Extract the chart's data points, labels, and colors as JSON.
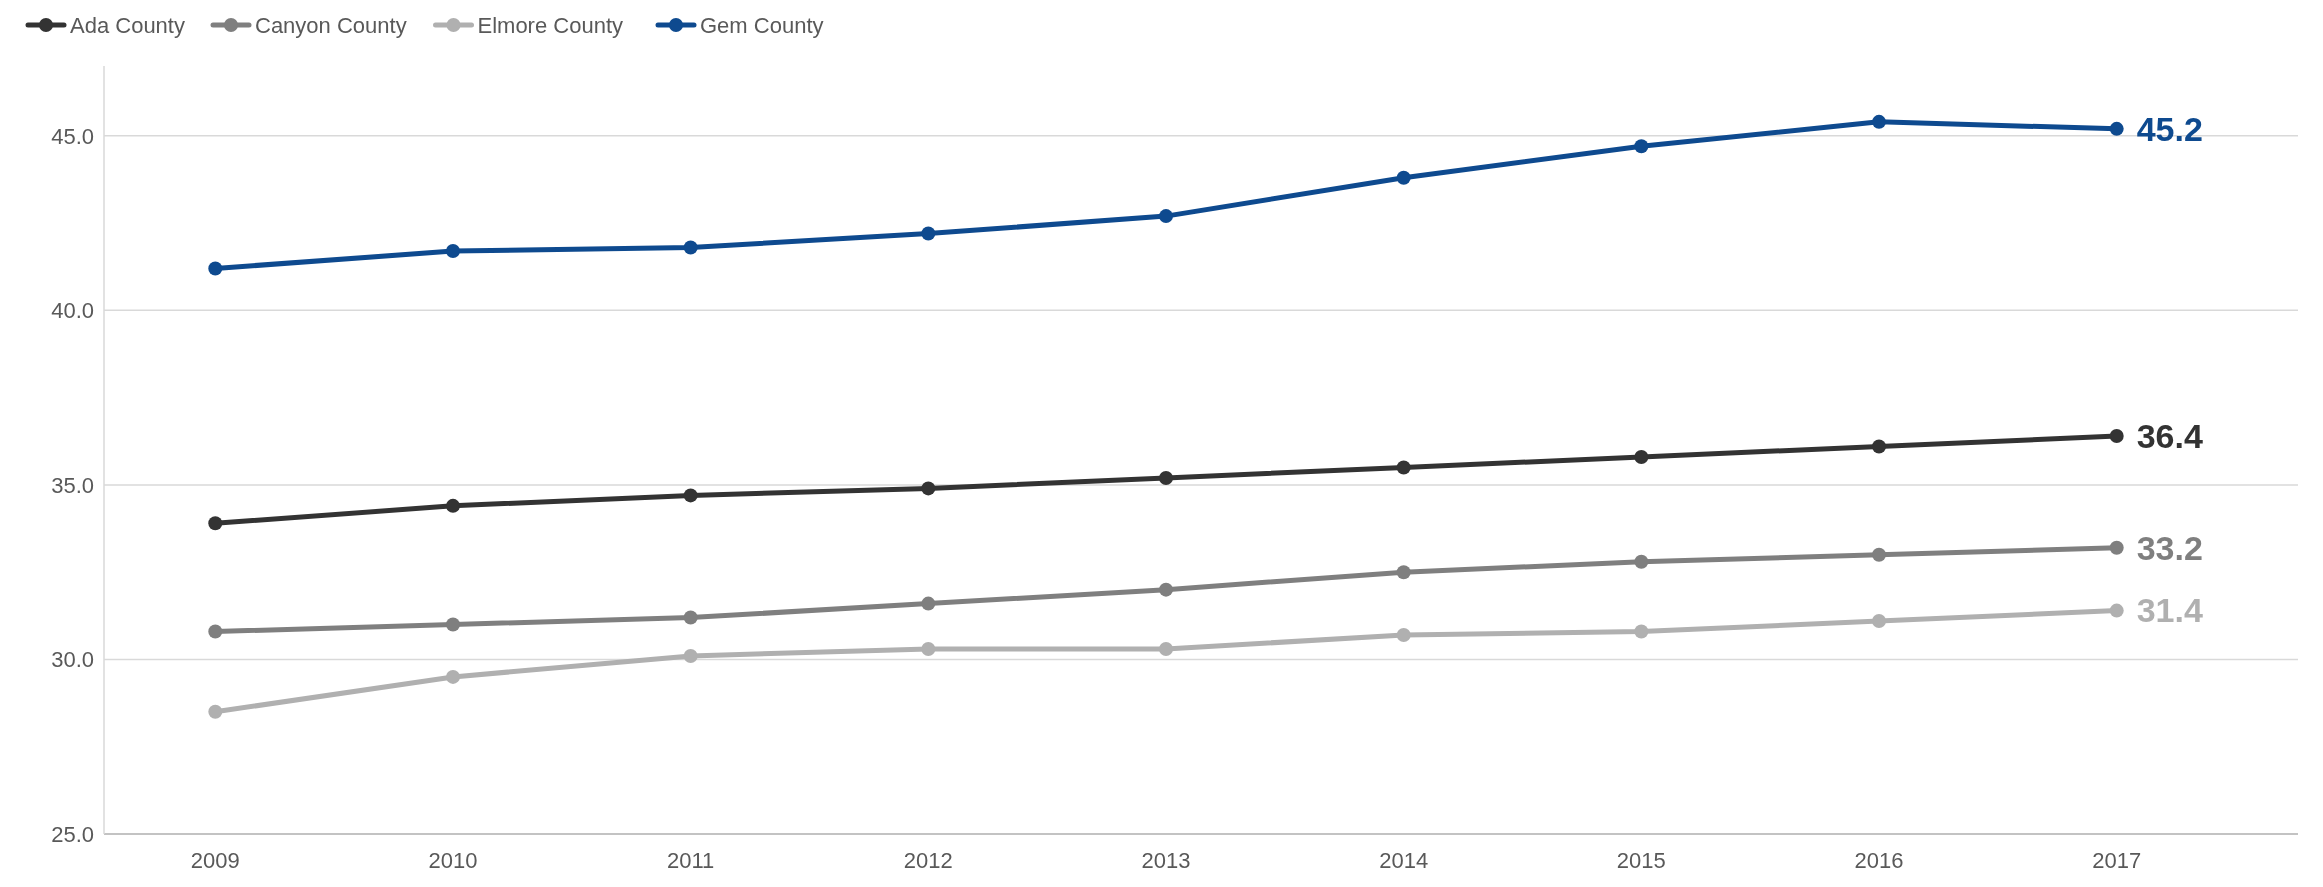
{
  "chart_data": {
    "type": "line",
    "categories": [
      "2009",
      "2010",
      "2011",
      "2012",
      "2013",
      "2014",
      "2015",
      "2016",
      "2017"
    ],
    "series": [
      {
        "name": "Ada County",
        "color": "#333333",
        "values": [
          33.9,
          34.4,
          34.7,
          34.9,
          35.2,
          35.5,
          35.8,
          36.1,
          36.4
        ],
        "value_labels": [
          null,
          null,
          null,
          null,
          null,
          null,
          null,
          null,
          "36.4"
        ]
      },
      {
        "name": "Canyon County",
        "color": "#7f7f7f",
        "values": [
          30.8,
          31.0,
          31.2,
          31.6,
          32.0,
          32.5,
          32.8,
          33.0,
          33.2
        ],
        "value_labels": [
          null,
          null,
          null,
          null,
          null,
          null,
          null,
          null,
          "33.2"
        ]
      },
      {
        "name": "Elmore County",
        "color": "#b0b0b0",
        "values": [
          28.5,
          29.5,
          30.1,
          30.3,
          30.3,
          30.7,
          30.8,
          31.1,
          31.4
        ],
        "value_labels": [
          null,
          null,
          null,
          null,
          null,
          null,
          null,
          null,
          "31.4"
        ]
      },
      {
        "name": "Gem County",
        "color": "#0e4a8f",
        "values": [
          41.2,
          41.7,
          41.8,
          42.2,
          42.7,
          43.8,
          44.7,
          45.4,
          45.2
        ],
        "value_labels": [
          null,
          null,
          null,
          null,
          null,
          null,
          null,
          null,
          "45.2"
        ]
      }
    ],
    "ylim": [
      25,
      47
    ],
    "yticks": [
      {
        "value": 25,
        "label": "25.0"
      },
      {
        "value": 30,
        "label": "30.0"
      },
      {
        "value": 35,
        "label": "35.0"
      },
      {
        "value": 40,
        "label": "40.0"
      },
      {
        "value": 45,
        "label": "45.0"
      }
    ],
    "grid": "y",
    "legend": "top left",
    "marker": "circle",
    "line_style": "solid"
  }
}
